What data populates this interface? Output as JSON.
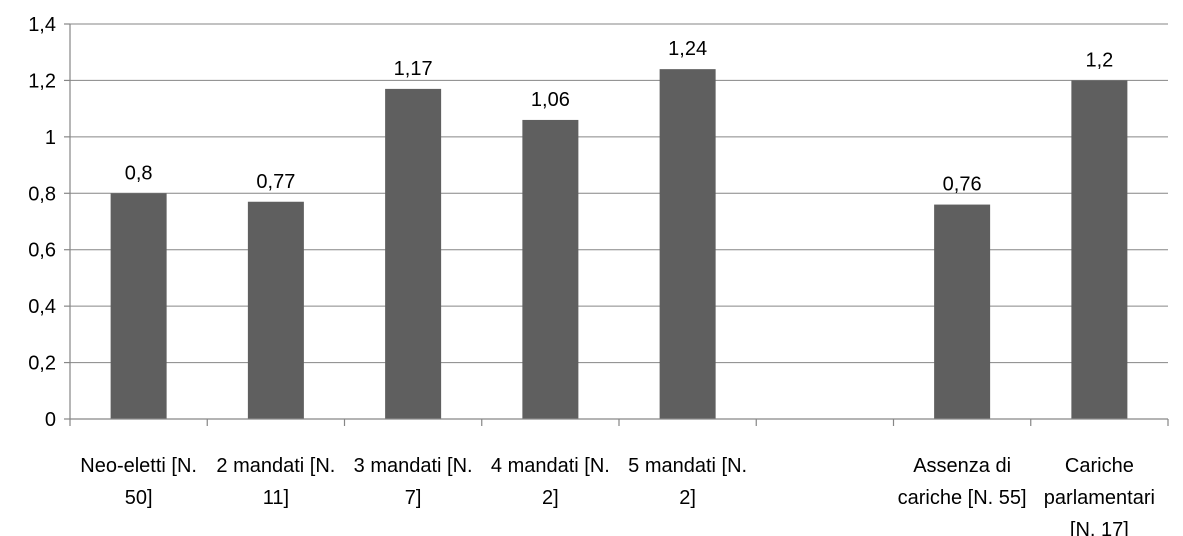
{
  "chart_data": {
    "type": "bar",
    "categories": [
      [
        "Neo-eletti [N.",
        "50]"
      ],
      [
        "2 mandati [N.",
        "11]"
      ],
      [
        "3 mandati [N.",
        "7]"
      ],
      [
        "4 mandati [N.",
        "2]"
      ],
      [
        "5 mandati [N.",
        "2]"
      ],
      [
        "",
        ""
      ],
      [
        "Assenza di",
        "cariche [N. 55]"
      ],
      [
        "Cariche",
        "parlamentari",
        "[N. 17]"
      ]
    ],
    "values": [
      0.8,
      0.77,
      1.17,
      1.06,
      1.24,
      null,
      0.76,
      1.2
    ],
    "data_labels": [
      "0,8",
      "0,77",
      "1,17",
      "1,06",
      "1,24",
      "",
      "0,76",
      "1,2"
    ],
    "ylim": [
      0,
      1.4
    ],
    "yticks": [
      0,
      0.2,
      0.4,
      0.6,
      0.8,
      1,
      1.2,
      1.4
    ],
    "ytick_labels": [
      "0",
      "0,2",
      "0,4",
      "0,6",
      "0,8",
      "1",
      "1,2",
      "1,4"
    ],
    "grid": true,
    "legend": "none",
    "bar_color": "#5f5f5f",
    "grid_color": "#868686",
    "title": "",
    "xlabel": "",
    "ylabel": ""
  }
}
